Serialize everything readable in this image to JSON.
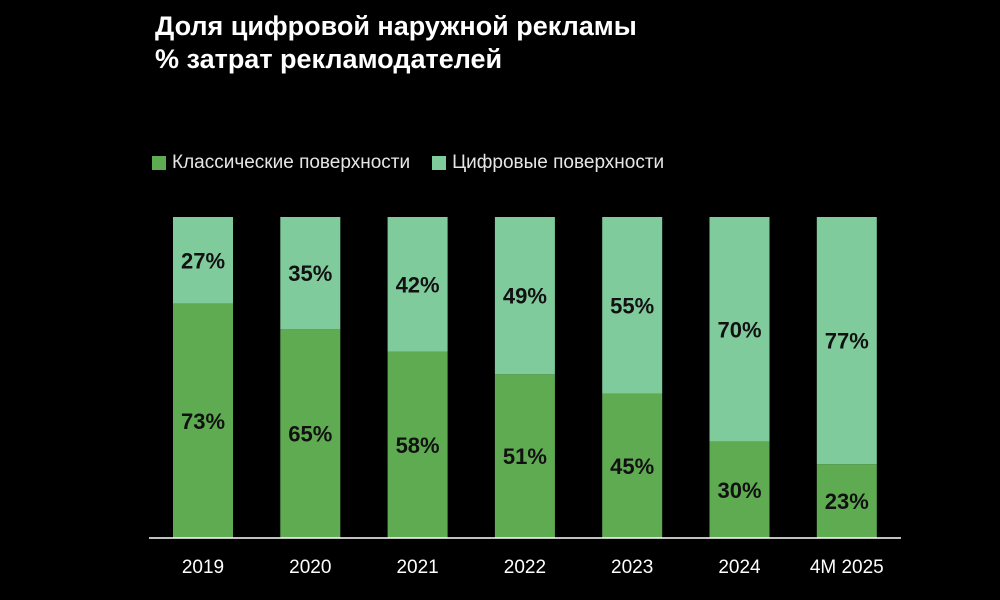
{
  "colors": {
    "classic": "#5fab52",
    "digital": "#80cb9c",
    "background": "#000000",
    "text": "#ffffff"
  },
  "chart_data": {
    "type": "bar",
    "stacked": true,
    "title": "Доля цифровой наружной рекламы",
    "subtitle": "% затрат рекламодателей",
    "categories": [
      "2019",
      "2020",
      "2021",
      "2022",
      "2023",
      "2024",
      "4M 2025"
    ],
    "series": [
      {
        "name": "Классические поверхности",
        "values": [
          73,
          65,
          58,
          51,
          45,
          30,
          23
        ]
      },
      {
        "name": "Цифровые поверхности",
        "values": [
          27,
          35,
          42,
          49,
          55,
          70,
          77
        ]
      }
    ],
    "value_suffix": "%",
    "ylim": [
      0,
      100
    ],
    "grid": false,
    "legend_placement": "top-left"
  }
}
